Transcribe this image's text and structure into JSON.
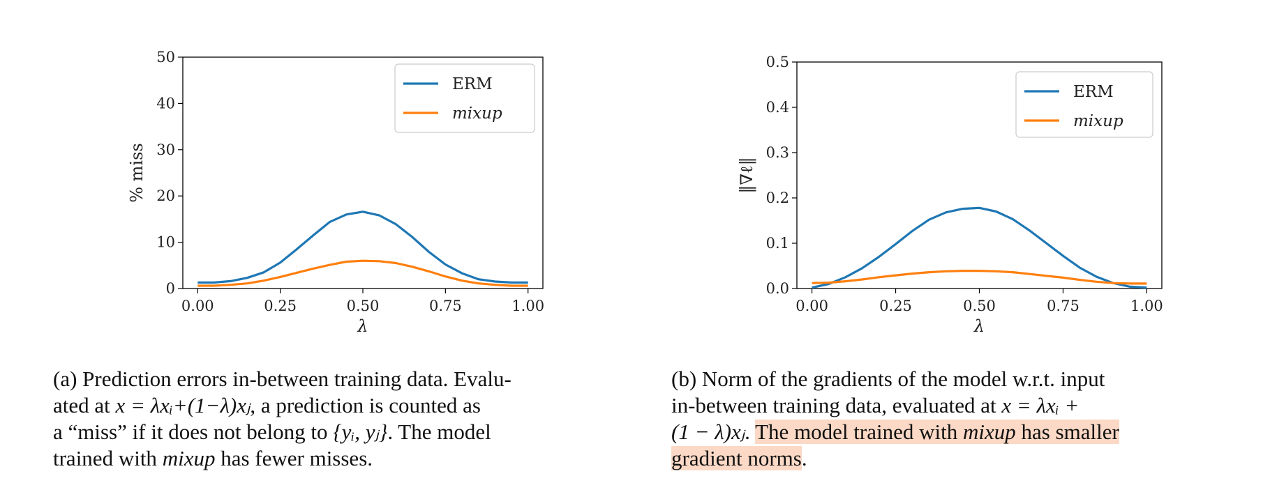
{
  "chart_data": [
    {
      "type": "line",
      "xlabel": "λ",
      "ylabel": "% miss",
      "xlim": [
        0,
        1
      ],
      "ylim": [
        0,
        50
      ],
      "xticks": [
        "0.00",
        "0.25",
        "0.50",
        "0.75",
        "1.00"
      ],
      "yticks": [
        "0",
        "10",
        "20",
        "30",
        "40",
        "50"
      ],
      "legend_position": "top-right",
      "x": [
        0.0,
        0.05,
        0.1,
        0.15,
        0.2,
        0.25,
        0.3,
        0.35,
        0.4,
        0.45,
        0.5,
        0.55,
        0.6,
        0.65,
        0.7,
        0.75,
        0.8,
        0.85,
        0.9,
        0.95,
        1.0
      ],
      "series": [
        {
          "name": "ERM",
          "italic": false,
          "color": "#1f77b4",
          "values": [
            1.3,
            1.3,
            1.6,
            2.3,
            3.5,
            5.6,
            8.5,
            11.5,
            14.4,
            16.0,
            16.6,
            15.8,
            13.9,
            11.1,
            7.9,
            5.2,
            3.3,
            2.0,
            1.5,
            1.3,
            1.3
          ]
        },
        {
          "name": "mixup",
          "italic": true,
          "color": "#ff7f0e",
          "values": [
            0.6,
            0.6,
            0.8,
            1.1,
            1.7,
            2.5,
            3.4,
            4.3,
            5.1,
            5.8,
            6.0,
            5.9,
            5.5,
            4.7,
            3.7,
            2.6,
            1.7,
            1.1,
            0.8,
            0.6,
            0.6
          ]
        }
      ]
    },
    {
      "type": "line",
      "xlabel": "λ",
      "ylabel": "‖∇ℓ‖",
      "xlim": [
        0,
        1
      ],
      "ylim": [
        0,
        0.5
      ],
      "xticks": [
        "0.00",
        "0.25",
        "0.50",
        "0.75",
        "1.00"
      ],
      "yticks": [
        "0.0",
        "0.1",
        "0.2",
        "0.3",
        "0.4",
        "0.5"
      ],
      "legend_position": "top-right",
      "x": [
        0.0,
        0.05,
        0.1,
        0.15,
        0.2,
        0.25,
        0.3,
        0.35,
        0.4,
        0.45,
        0.5,
        0.55,
        0.6,
        0.65,
        0.7,
        0.75,
        0.8,
        0.85,
        0.9,
        0.95,
        1.0
      ],
      "series": [
        {
          "name": "ERM",
          "italic": false,
          "color": "#1f77b4",
          "values": [
            0.002,
            0.01,
            0.025,
            0.045,
            0.07,
            0.098,
            0.127,
            0.152,
            0.168,
            0.176,
            0.178,
            0.17,
            0.153,
            0.128,
            0.1,
            0.072,
            0.046,
            0.026,
            0.012,
            0.004,
            0.002
          ]
        },
        {
          "name": "mixup",
          "italic": true,
          "color": "#ff7f0e",
          "values": [
            0.012,
            0.013,
            0.016,
            0.02,
            0.025,
            0.029,
            0.033,
            0.036,
            0.038,
            0.039,
            0.039,
            0.038,
            0.036,
            0.032,
            0.028,
            0.024,
            0.019,
            0.015,
            0.012,
            0.011,
            0.011
          ]
        }
      ]
    }
  ],
  "captions": {
    "a": {
      "line1": "(a) Prediction errors in-between training data. Evalu-",
      "line2_pre": "ated at ",
      "line2_math": "x = λxᵢ+(1−λ)xⱼ",
      "line2_post": ", a prediction is counted as",
      "line3_pre": "a “miss” if it does not belong to ",
      "line3_math": "{yᵢ, yⱼ}",
      "line3_post": ". The model",
      "line4_pre": "trained with ",
      "line4_it": "mixup",
      "line4_post": " has fewer misses."
    },
    "b": {
      "line1": "(b) Norm of the gradients of the model w.r.t.  input",
      "line2_pre": "in-between training data, evaluated at ",
      "line2_math": "x = λxᵢ +",
      "line3_math": "(1 − λ)xⱼ",
      "line3_post": ". ",
      "hl1_pre": "The model trained with ",
      "hl1_it": "mixup",
      "hl1_post": " has smaller",
      "hl2": "gradient norms",
      "line4_post": "."
    }
  }
}
